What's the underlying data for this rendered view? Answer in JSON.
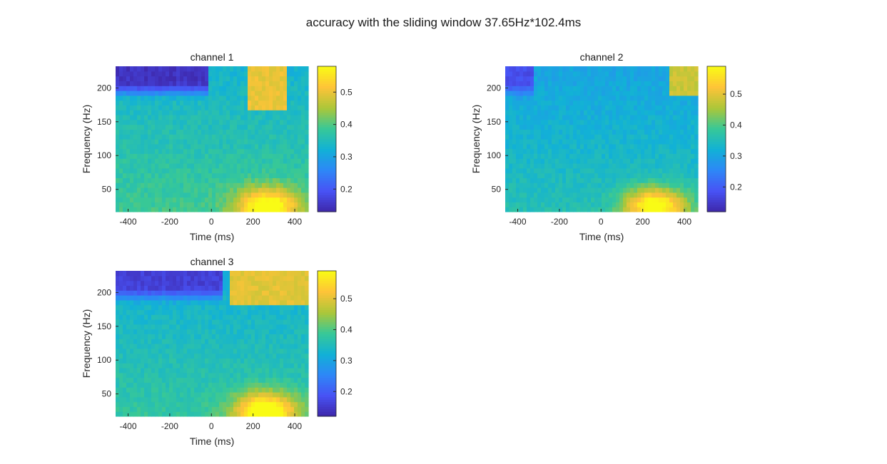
{
  "figure": {
    "title": "accuracy with the sliding window 37.65Hz*102.4ms"
  },
  "chart_data": [
    {
      "type": "heatmap",
      "title": "channel 1",
      "xlabel": "Time (ms)",
      "ylabel": "Frequency (Hz)",
      "xlim": [
        -460,
        465
      ],
      "ylim": [
        17,
        232
      ],
      "xticks": [
        -400,
        -200,
        0,
        200,
        400
      ],
      "yticks": [
        50,
        100,
        150,
        200
      ],
      "colorbar": {
        "clim": [
          0.13,
          0.58
        ],
        "ticks": [
          0.2,
          0.3,
          0.4,
          0.5
        ],
        "colormap": "parula"
      },
      "features": {
        "base": 0.33,
        "low_freq_hotspot": {
          "time_ms": 270,
          "freq_hz": 25,
          "peak": 0.56
        },
        "high_freq_patch": {
          "time_ms": [
            180,
            360
          ],
          "freq_hz": [
            170,
            232
          ],
          "value": 0.5
        },
        "cold_region": {
          "time_ms": [
            -460,
            -20
          ],
          "freq_hz": [
            200,
            232
          ],
          "value": 0.15
        }
      }
    },
    {
      "type": "heatmap",
      "title": "channel 2",
      "xlabel": "Time (ms)",
      "ylabel": "Frequency (Hz)",
      "xlim": [
        -460,
        465
      ],
      "ylim": [
        17,
        232
      ],
      "xticks": [
        -400,
        -200,
        0,
        200,
        400
      ],
      "yticks": [
        50,
        100,
        150,
        200
      ],
      "colorbar": {
        "clim": [
          0.12,
          0.59
        ],
        "ticks": [
          0.2,
          0.3,
          0.4,
          0.5
        ],
        "colormap": "parula"
      },
      "features": {
        "base": 0.3,
        "low_freq_hotspot": {
          "time_ms": 260,
          "freq_hz": 25,
          "peak": 0.56
        },
        "high_freq_patch": {
          "time_ms": [
            330,
            460
          ],
          "freq_hz": [
            190,
            232
          ],
          "value": 0.48
        },
        "cold_region": {
          "time_ms": [
            -460,
            -320
          ],
          "freq_hz": [
            200,
            232
          ],
          "value": 0.18
        }
      }
    },
    {
      "type": "heatmap",
      "title": "channel 3",
      "xlabel": "Time (ms)",
      "ylabel": "Frequency (Hz)",
      "xlim": [
        -460,
        465
      ],
      "ylim": [
        17,
        232
      ],
      "xticks": [
        -400,
        -200,
        0,
        200,
        400
      ],
      "yticks": [
        50,
        100,
        150,
        200
      ],
      "colorbar": {
        "clim": [
          0.12,
          0.59
        ],
        "ticks": [
          0.2,
          0.3,
          0.4,
          0.5
        ],
        "colormap": "parula"
      },
      "features": {
        "base": 0.32,
        "low_freq_hotspot": {
          "time_ms": 260,
          "freq_hz": 25,
          "peak": 0.58
        },
        "high_freq_patch": {
          "time_ms": [
            80,
            465
          ],
          "freq_hz": [
            180,
            232
          ],
          "value": 0.5
        },
        "cold_region": {
          "time_ms": [
            -460,
            60
          ],
          "freq_hz": [
            200,
            232
          ],
          "value": 0.16
        }
      }
    }
  ]
}
